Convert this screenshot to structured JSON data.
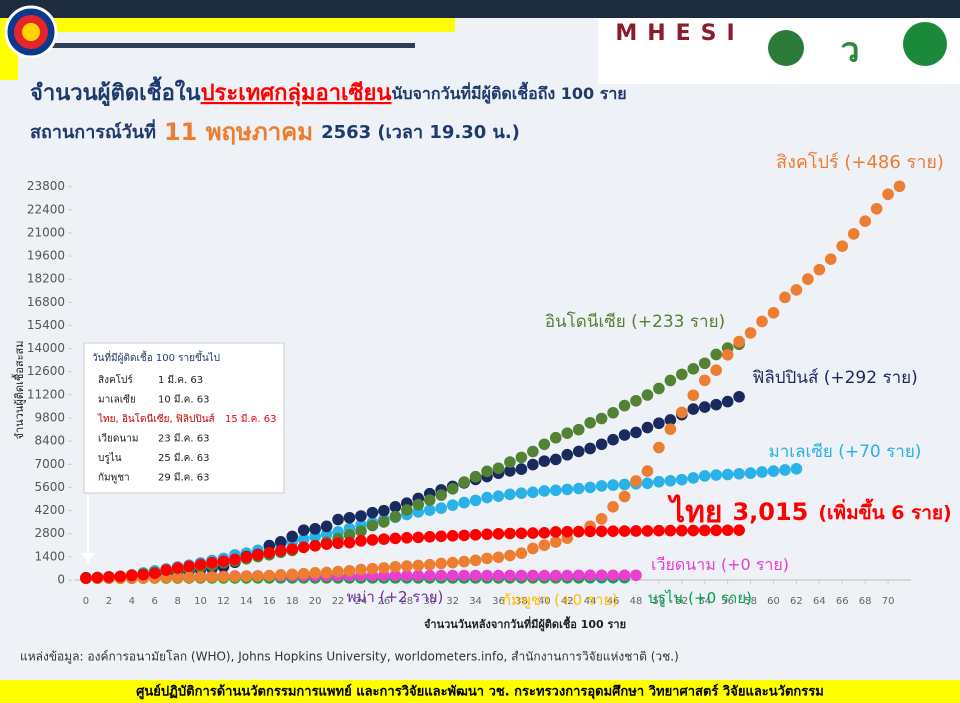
{
  "chart_data": {
    "type": "scatter",
    "title_parts": [
      "จำนวนผู้ติดเชื้อใน",
      "ประเทศกลุ่มอาเซียน",
      "นับจากวันที่มีผู้ติดเชื้อถึง 100 ราย"
    ],
    "subtitle_parts": [
      "สถานการณ์วันที่",
      "11 พฤษภาคม",
      "2563  (เวลา 19.30 น.)"
    ],
    "y_label": "จำนวนผู้ติดเชื้อสะสม",
    "x_label": "จำนวนวันหลังจากวันที่มีผู้ติดเชื้อ 100 ราย",
    "xlim": [
      -1,
      72
    ],
    "ylim": [
      0,
      24200
    ],
    "xticks": [
      0,
      2,
      4,
      6,
      8,
      10,
      12,
      14,
      16,
      18,
      20,
      22,
      24,
      26,
      28,
      30,
      32,
      34,
      36,
      38,
      40,
      42,
      44,
      46,
      48,
      50,
      52,
      54,
      56,
      58,
      60,
      62,
      64,
      66,
      68,
      70
    ],
    "yticks": [
      0,
      1400,
      2800,
      4200,
      5600,
      7000,
      8400,
      9800,
      11200,
      12600,
      14000,
      15400,
      16800,
      18200,
      19600,
      21000,
      22400,
      23800
    ],
    "start_note": {
      "title": "วันที่มีผู้ติดเชื้อ 100 รายขึ้นไป",
      "rows": [
        [
          "สิงคโปร์",
          "1 มี.ค. 63"
        ],
        [
          "มาเลเซีย",
          "10 มี.ค. 63"
        ],
        [
          "ไทย, อินโดนีเซีย, ฟิลิปปินส์",
          "15 มี.ค. 63"
        ],
        [
          "เวียดนาม",
          "23 มี.ค. 63"
        ],
        [
          "บรูไน",
          "25 มี.ค. 63"
        ],
        [
          "กัมพูชา",
          "29 มี.ค. 63"
        ]
      ]
    },
    "series": [
      {
        "name": "พม่า (+2 ราย)",
        "color": "#7030a0",
        "values": [
          111,
          119,
          121,
          144,
          144,
          144,
          146,
          146,
          147,
          151,
          155,
          161,
          162,
          162,
          176,
          178,
          178,
          178,
          178,
          178,
          178,
          178,
          178,
          178,
          178,
          178,
          178,
          178,
          178,
          178,
          178,
          180
        ]
      },
      {
        "name": "กัมพูชา (+0 ราย)",
        "color": "#ffc000",
        "values": [
          103,
          107,
          109,
          109,
          110,
          114,
          114,
          115,
          115,
          117,
          117,
          119,
          119,
          119,
          120,
          120,
          122,
          122,
          122,
          122,
          122,
          122,
          122,
          122,
          122,
          122,
          122,
          122,
          122,
          122,
          122,
          122,
          122,
          122,
          122,
          122,
          122,
          122,
          122,
          122,
          122,
          122,
          122,
          122
        ]
      },
      {
        "name": "บรูไน (+0 ราย)",
        "color": "#00a651",
        "values": [
          104,
          105,
          109,
          114,
          115,
          120,
          126,
          127,
          129,
          131,
          133,
          134,
          135,
          135,
          135,
          135,
          136,
          136,
          136,
          136,
          136,
          136,
          136,
          136,
          137,
          138,
          138,
          138,
          138,
          138,
          138,
          138,
          138,
          138,
          138,
          138,
          138,
          139,
          141,
          141,
          141,
          141,
          141,
          141,
          141,
          141,
          141,
          141
        ]
      },
      {
        "name": "เวียดนาม (+0 ราย)",
        "color": "#e83fd0",
        "values": [
          113,
          123,
          134,
          141,
          153,
          163,
          174,
          188,
          203,
          212,
          218,
          233,
          237,
          240,
          241,
          245,
          249,
          251,
          255,
          257,
          262,
          265,
          266,
          267,
          268,
          268,
          268,
          268,
          268,
          270,
          270,
          270,
          271,
          271,
          271,
          271,
          271,
          271,
          271,
          271,
          271,
          271,
          271,
          288,
          288,
          288,
          288,
          288,
          288
        ]
      },
      {
        "name": "มาเลเซีย (+70 ราย)",
        "color": "#29b1e8",
        "values": [
          129,
          149,
          149,
          197,
          238,
          428,
          553,
          673,
          790,
          900,
          1030,
          1183,
          1306,
          1518,
          1624,
          1796,
          2031,
          2161,
          2320,
          2470,
          2626,
          2766,
          2908,
          3116,
          3333,
          3483,
          3662,
          3793,
          3963,
          4119,
          4228,
          4346,
          4530,
          4683,
          4817,
          4987,
          5072,
          5182,
          5251,
          5305,
          5389,
          5425,
          5482,
          5532,
          5603,
          5691,
          5742,
          5780,
          5820,
          5851,
          5945,
          6002,
          6071,
          6176,
          6298,
          6353,
          6383,
          6428,
          6467,
          6535,
          6589,
          6656,
          6726
        ]
      },
      {
        "name": "ฟิลิปปินส์ (+292 ราย)",
        "color": "#1b2a5e",
        "values": [
          140,
          142,
          187,
          202,
          217,
          230,
          307,
          380,
          462,
          552,
          636,
          707,
          803,
          1075,
          1418,
          1546,
          2084,
          2311,
          2633,
          3018,
          3094,
          3246,
          3660,
          3764,
          3870,
          4076,
          4195,
          4428,
          4648,
          4932,
          5223,
          5453,
          5660,
          5878,
          6087,
          6259,
          6459,
          6599,
          6710,
          6981,
          7192,
          7294,
          7579,
          7777,
          7958,
          8212,
          8488,
          8772,
          8928,
          9223,
          9485,
          9684,
          10004,
          10343,
          10463,
          10610,
          10794,
          11086
        ]
      },
      {
        "name": "อินโดนีเซีย (+233 ราย)",
        "color": "#548235",
        "values": [
          117,
          134,
          172,
          227,
          309,
          369,
          450,
          514,
          579,
          686,
          790,
          893,
          1046,
          1155,
          1285,
          1414,
          1528,
          1677,
          1790,
          1986,
          2092,
          2273,
          2491,
          2738,
          2956,
          3293,
          3512,
          3842,
          4241,
          4557,
          4839,
          5136,
          5516,
          5923,
          6248,
          6575,
          6760,
          7135,
          7418,
          7775,
          8211,
          8607,
          8882,
          9096,
          9511,
          9771,
          10118,
          10551,
          10843,
          11192,
          11587,
          12071,
          12438,
          12776,
          13112,
          13645,
          14032,
          14265
        ]
      },
      {
        "name": "สิงคโปร์ (+486 ราย)",
        "color": "#ed7d31",
        "values": [
          106,
          108,
          110,
          112,
          117,
          130,
          138,
          150,
          160,
          166,
          178,
          187,
          200,
          212,
          226,
          243,
          266,
          313,
          345,
          385,
          432,
          455,
          509,
          558,
          631,
          683,
          732,
          802,
          844,
          879,
          926,
          1000,
          1049,
          1114,
          1189,
          1309,
          1375,
          1481,
          1623,
          1910,
          2108,
          2299,
          2532,
          2918,
          3252,
          3699,
          4427,
          5050,
          5992,
          6588,
          8014,
          9125,
          10141,
          11178,
          12075,
          12693,
          13624,
          14423,
          14951,
          15641,
          16169,
          17101,
          17548,
          18205,
          18778,
          19410,
          20198,
          20939,
          21707,
          22460,
          23336,
          23822
        ]
      },
      {
        "name": "ไทย",
        "label_parts": [
          "3,015",
          "(เพิ่มขึ้น 6 ราย)"
        ],
        "color": "#ff0000",
        "values": [
          114,
          147,
          177,
          212,
          272,
          322,
          411,
          599,
          721,
          827,
          934,
          1045,
          1136,
          1245,
          1388,
          1524,
          1651,
          1771,
          1875,
          1978,
          2067,
          2169,
          2220,
          2258,
          2369,
          2423,
          2473,
          2518,
          2551,
          2579,
          2613,
          2643,
          2672,
          2700,
          2733,
          2765,
          2792,
          2811,
          2826,
          2839,
          2854,
          2907,
          2922,
          2931,
          2938,
          2947,
          2954,
          2960,
          2966,
          2969,
          2987,
          2988,
          2989,
          2992,
          3000,
          3004,
          3009,
          3015
        ]
      }
    ],
    "source": "แหล่งข้อมูล: องค์การอนามัยโลก (WHO), Johns Hopkins University, worldometers.info, สำนักงานการวิจัยแห่งชาติ (วช.)",
    "footer": "ศูนย์ปฏิบัติการด้านนวัตกรรมการแพทย์ และการวิจัยและพัฒนา  วช.   กระทรวงการอุดมศึกษา วิทยาศาสตร์ วิจัยและนวัตกรรม",
    "logo_text": "MHESI"
  }
}
